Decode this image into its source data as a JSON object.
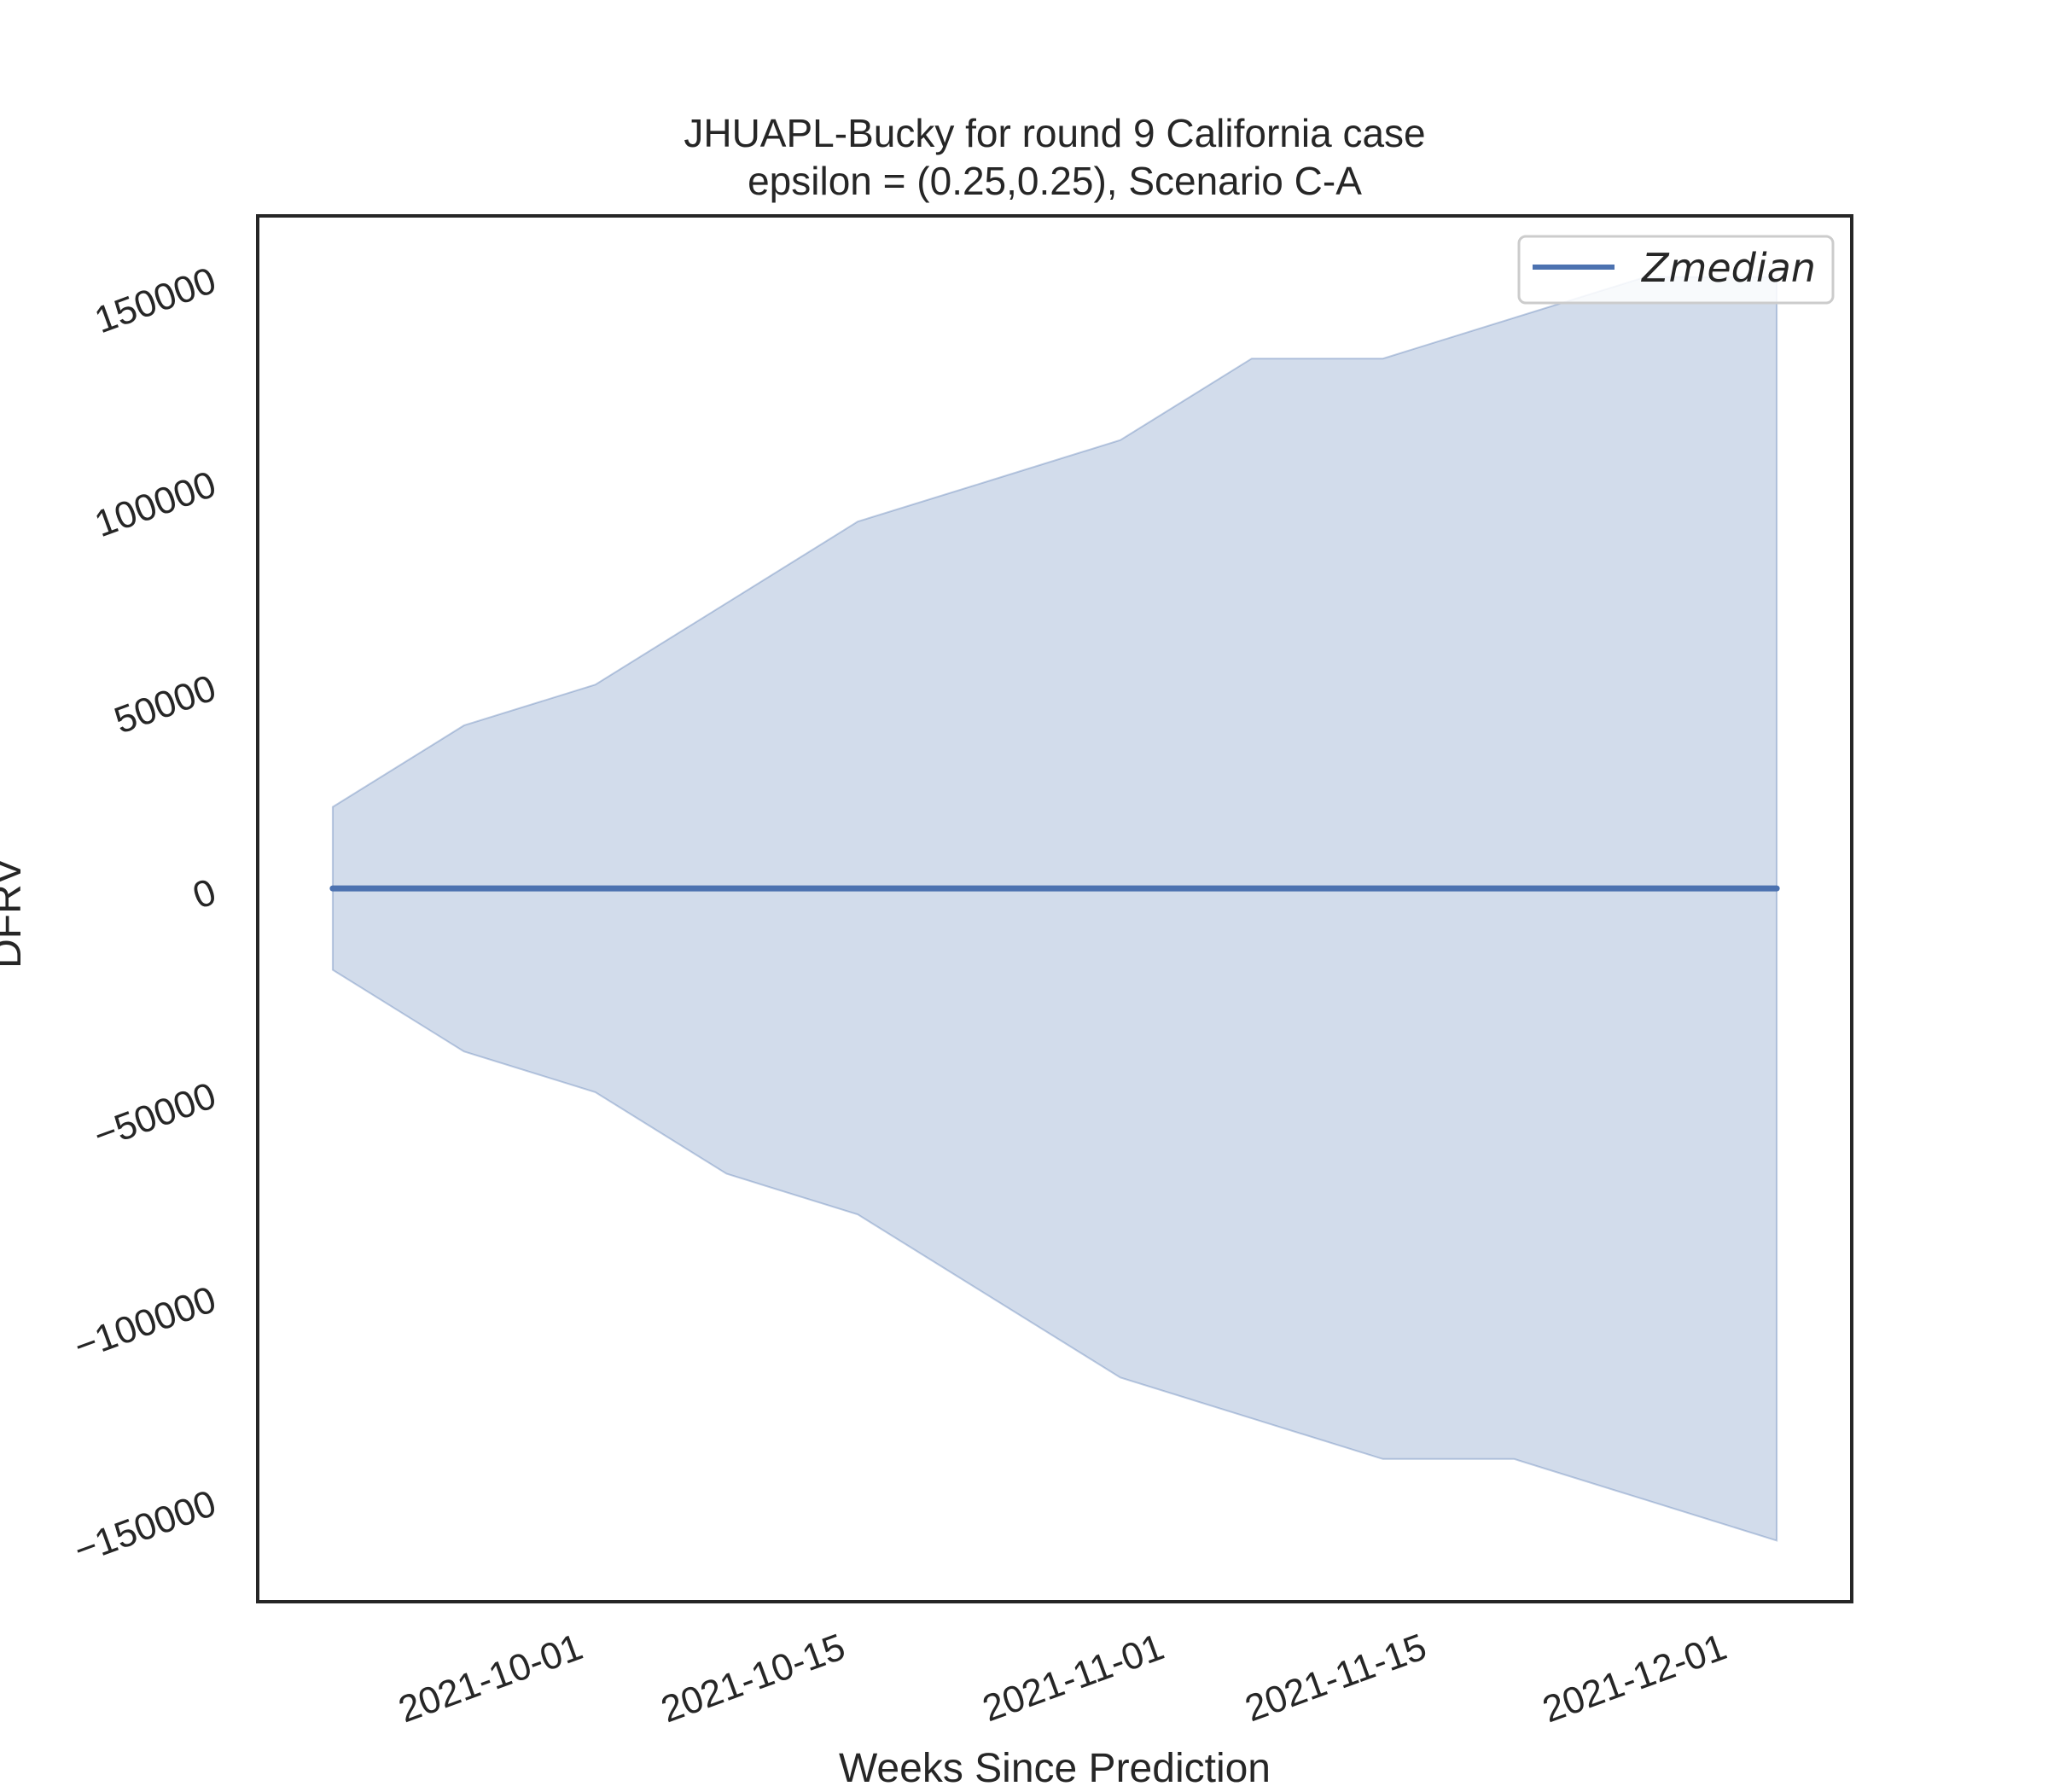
{
  "chart_data": {
    "type": "area",
    "title_line1": "JHUAPL-Bucky for round 9 California  case",
    "title_line2": "epsilon = (0.25,0.25), Scenario C-A",
    "xlabel": "Weeks Since Prediction",
    "ylabel": "DFRV",
    "x": [
      "2021-09-18",
      "2021-09-25",
      "2021-10-02",
      "2021-10-09",
      "2021-10-16",
      "2021-10-23",
      "2021-10-30",
      "2021-11-06",
      "2021-11-13",
      "2021-11-20",
      "2021-11-27",
      "2021-12-04"
    ],
    "x_ticks": [
      "2021-10-01",
      "2021-10-15",
      "2021-11-01",
      "2021-11-15",
      "2021-12-01"
    ],
    "xlim": [
      "2021-09-14",
      "2021-12-08"
    ],
    "y_ticks": [
      150000,
      100000,
      50000,
      0,
      -50000,
      -100000,
      -150000
    ],
    "y_tick_labels": [
      "150000",
      "100000",
      "50000",
      "0",
      "−50000",
      "−100000",
      "−150000"
    ],
    "ylim": [
      -175000,
      165000
    ],
    "grid": false,
    "legend": {
      "position": "top-right",
      "entries": [
        "Zmedian"
      ]
    },
    "series": [
      {
        "name": "Zmedian",
        "color": "#4c72b0",
        "values": [
          0,
          0,
          0,
          0,
          0,
          0,
          0,
          0,
          0,
          0,
          0,
          0
        ]
      }
    ],
    "band": {
      "color": "#4c72b0",
      "opacity": 0.25,
      "upper": [
        20000,
        40000,
        50000,
        70000,
        90000,
        100000,
        110000,
        130000,
        130000,
        140000,
        150000,
        150000
      ],
      "lower": [
        -20000,
        -40000,
        -50000,
        -70000,
        -80000,
        -100000,
        -120000,
        -130000,
        -140000,
        -140000,
        -150000,
        -160000
      ]
    }
  }
}
